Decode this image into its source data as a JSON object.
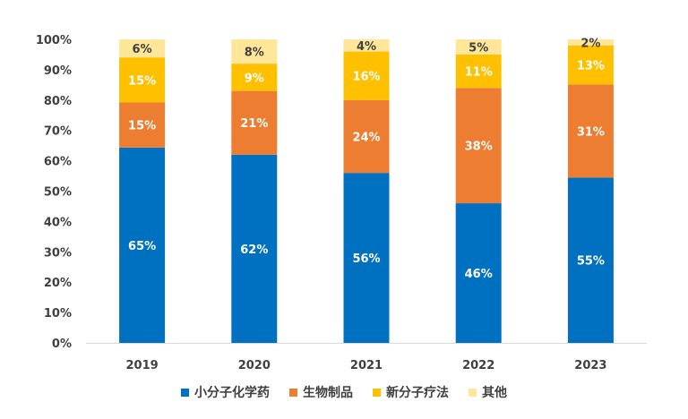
{
  "chart_data": {
    "type": "bar",
    "stacked": true,
    "normalized": true,
    "categories": [
      "2019",
      "2020",
      "2021",
      "2022",
      "2023"
    ],
    "ylim": [
      0,
      100
    ],
    "yticks": [
      "0%",
      "10%",
      "20%",
      "30%",
      "40%",
      "50%",
      "60%",
      "70%",
      "80%",
      "90%",
      "100%"
    ],
    "grid": false,
    "legend_position": "bottom",
    "series": [
      {
        "name": "小分子化学药",
        "color": "#0070C0",
        "label_color": "#FFFFFF",
        "values": [
          65,
          62,
          56,
          46,
          55
        ],
        "labels": [
          "65%",
          "62%",
          "56%",
          "46%",
          "55%"
        ]
      },
      {
        "name": "生物制品",
        "color": "#ED7D31",
        "label_color": "#FFFFFF",
        "values": [
          15,
          21,
          24,
          38,
          31
        ],
        "labels": [
          "15%",
          "21%",
          "24%",
          "38%",
          "31%"
        ]
      },
      {
        "name": "新分子疗法",
        "color": "#FFC000",
        "label_color": "#FFFFFF",
        "values": [
          15,
          9,
          16,
          11,
          13
        ],
        "labels": [
          "15%",
          "9%",
          "16%",
          "11%",
          "13%"
        ]
      },
      {
        "name": "其他",
        "color": "#FFE699",
        "label_color": "#404040",
        "values": [
          6,
          8,
          4,
          5,
          2
        ],
        "labels": [
          "6%",
          "8%",
          "4%",
          "5%",
          "2%"
        ]
      }
    ]
  }
}
